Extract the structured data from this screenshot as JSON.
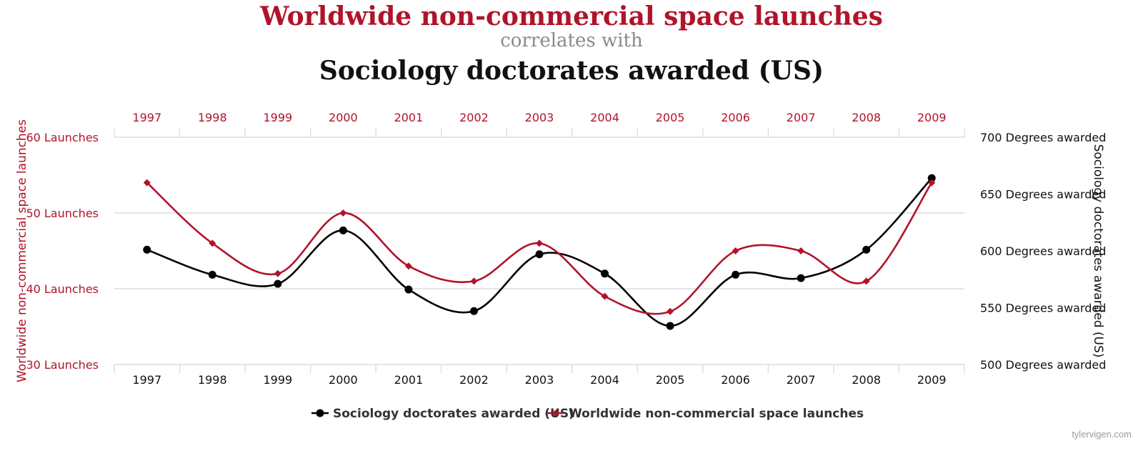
{
  "title_line1": "Worldwide non-commercial space launches",
  "title_line2": "correlates with",
  "title_line3": "Sociology doctorates awarded (US)",
  "watermark": "tylervigen.com",
  "colors": {
    "launches": "#b0142a",
    "doctorates": "#000000",
    "grid": "#cfd8e2"
  },
  "chart_data": {
    "type": "line",
    "x": [
      "1997",
      "1998",
      "1999",
      "2000",
      "2001",
      "2002",
      "2003",
      "2004",
      "2005",
      "2006",
      "2007",
      "2008",
      "2009"
    ],
    "series": [
      {
        "name": "Sociology doctorates awarded (US)",
        "axis": "right",
        "marker": "circle",
        "values": [
          601,
          579,
          571,
          618,
          566,
          547,
          597,
          580,
          534,
          579,
          576,
          601,
          664
        ]
      },
      {
        "name": "Worldwide non-commercial space launches",
        "axis": "left",
        "marker": "diamond",
        "values": [
          54,
          46,
          42,
          50,
          43,
          41,
          46,
          39,
          37,
          45,
          45,
          41,
          54
        ]
      }
    ],
    "left_axis": {
      "label": "Worldwide non-commercial space launches",
      "ylim": [
        30,
        60
      ],
      "ticks": [
        "30 Launches",
        "40 Launches",
        "50 Launches",
        "60 Launches"
      ],
      "tick_values": [
        30,
        40,
        50,
        60
      ]
    },
    "right_axis": {
      "label": "Sociology doctorates awarded (US)",
      "ylim": [
        500,
        700
      ],
      "ticks": [
        "500 Degrees awarded",
        "550 Degrees awarded",
        "600 Degrees awarded",
        "650 Degrees awarded",
        "700 Degrees awarded"
      ],
      "tick_values": [
        500,
        550,
        600,
        650,
        700
      ]
    },
    "legend_position": "bottom-center",
    "grid": true
  }
}
